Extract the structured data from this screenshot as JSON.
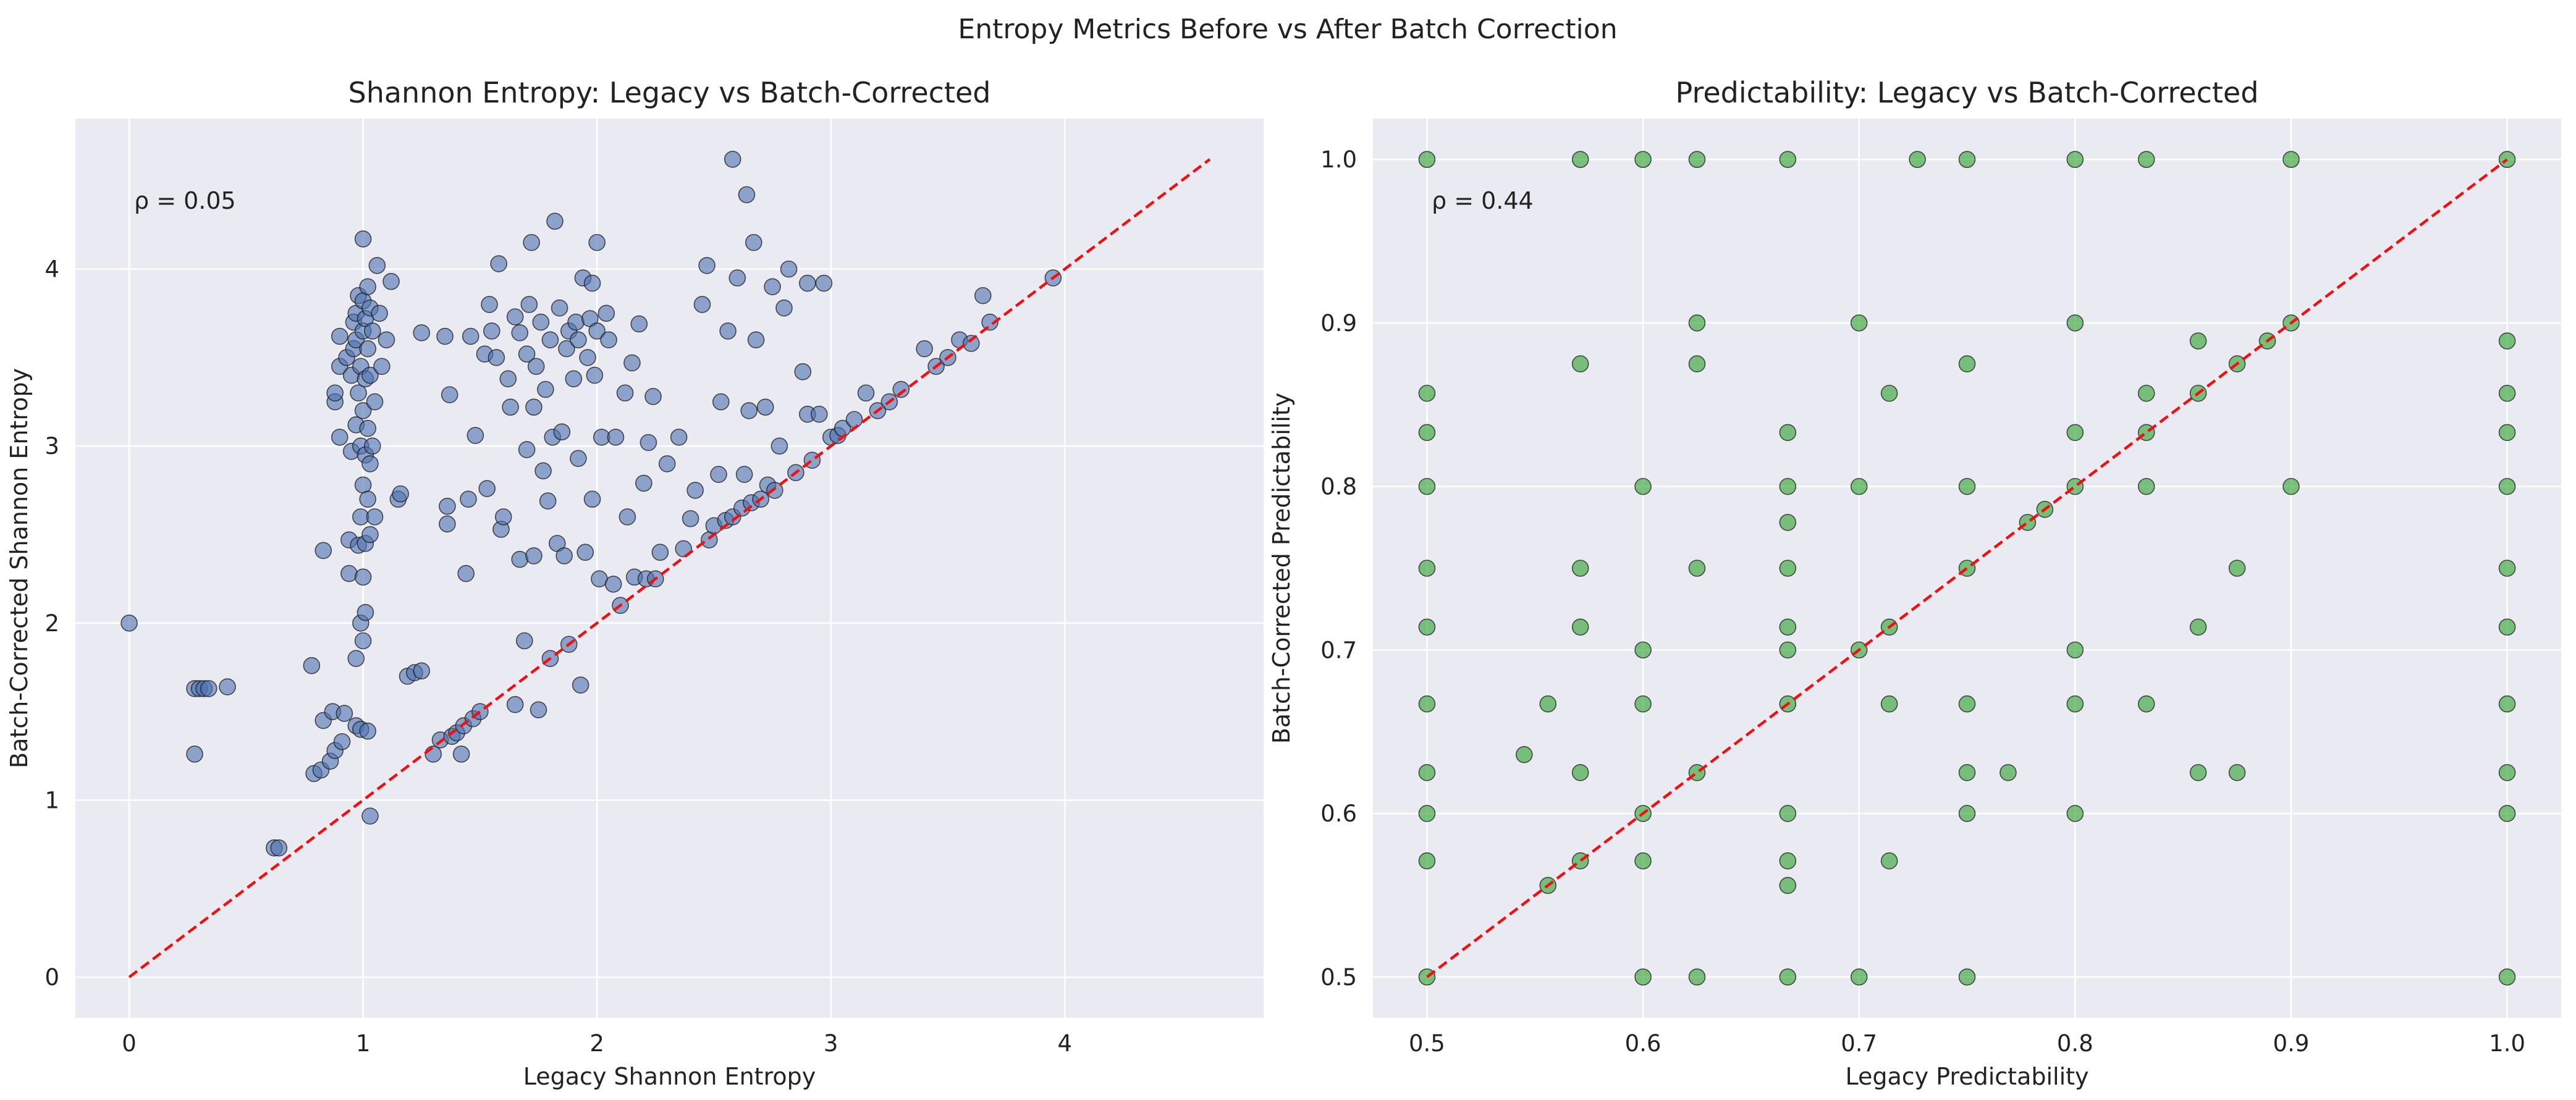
{
  "figure": {
    "suptitle": "Entropy Metrics Before vs After Batch Correction"
  },
  "colors": {
    "background": "#eaeaf2",
    "grid": "#ffffff",
    "identity_line": "#ee1111",
    "entropy_points": "#4c72b0",
    "predictability_points": "#2ca02c",
    "point_edge": "#1a1a1a"
  },
  "chart_data": [
    {
      "type": "scatter",
      "title": "Shannon Entropy: Legacy vs Batch-Corrected",
      "xlabel": "Legacy Shannon Entropy",
      "ylabel": "Batch-Corrected Shannon Entropy",
      "xlim": [
        -0.23,
        4.85
      ],
      "ylim": [
        -0.23,
        4.85
      ],
      "xticks": [
        "0",
        "1",
        "2",
        "3",
        "4"
      ],
      "yticks": [
        "0",
        "1",
        "2",
        "3",
        "4"
      ],
      "annotation": "ρ = 0.05",
      "grid": true,
      "reference_line": {
        "style": "dashed",
        "from": [
          0,
          0
        ],
        "to": [
          4.62,
          4.62
        ]
      },
      "point_color": "#4c72b0",
      "point_alpha": 0.6,
      "points": [
        [
          0.0,
          2.0
        ],
        [
          0.28,
          1.26
        ],
        [
          0.28,
          1.63
        ],
        [
          0.3,
          1.63
        ],
        [
          0.32,
          1.63
        ],
        [
          0.34,
          1.63
        ],
        [
          0.42,
          1.64
        ],
        [
          0.62,
          0.73
        ],
        [
          0.64,
          0.73
        ],
        [
          0.79,
          1.15
        ],
        [
          0.78,
          1.76
        ],
        [
          0.82,
          1.17
        ],
        [
          0.83,
          1.45
        ],
        [
          0.83,
          2.41
        ],
        [
          0.86,
          1.22
        ],
        [
          0.88,
          1.28
        ],
        [
          0.87,
          1.5
        ],
        [
          0.88,
          3.25
        ],
        [
          0.88,
          3.3
        ],
        [
          0.9,
          3.05
        ],
        [
          0.9,
          3.45
        ],
        [
          0.9,
          3.62
        ],
        [
          0.91,
          1.33
        ],
        [
          0.92,
          1.49
        ],
        [
          0.93,
          3.5
        ],
        [
          0.94,
          2.28
        ],
        [
          0.94,
          2.47
        ],
        [
          0.95,
          2.97
        ],
        [
          0.95,
          3.4
        ],
        [
          0.96,
          3.55
        ],
        [
          0.96,
          3.7
        ],
        [
          0.97,
          1.42
        ],
        [
          0.97,
          1.8
        ],
        [
          0.97,
          3.12
        ],
        [
          0.97,
          3.6
        ],
        [
          0.97,
          3.75
        ],
        [
          0.98,
          2.44
        ],
        [
          0.98,
          3.3
        ],
        [
          0.98,
          3.85
        ],
        [
          0.99,
          1.4
        ],
        [
          0.99,
          2.0
        ],
        [
          0.99,
          2.6
        ],
        [
          0.99,
          3.0
        ],
        [
          0.99,
          3.45
        ],
        [
          1.0,
          1.9
        ],
        [
          1.0,
          2.26
        ],
        [
          1.0,
          2.78
        ],
        [
          1.0,
          3.2
        ],
        [
          1.0,
          3.65
        ],
        [
          1.0,
          3.82
        ],
        [
          1.0,
          4.17
        ],
        [
          1.01,
          2.06
        ],
        [
          1.01,
          2.45
        ],
        [
          1.01,
          2.95
        ],
        [
          1.01,
          3.38
        ],
        [
          1.01,
          3.72
        ],
        [
          1.02,
          1.39
        ],
        [
          1.02,
          2.7
        ],
        [
          1.02,
          3.1
        ],
        [
          1.02,
          3.55
        ],
        [
          1.02,
          3.9
        ],
        [
          1.03,
          0.91
        ],
        [
          1.03,
          2.5
        ],
        [
          1.03,
          2.9
        ],
        [
          1.03,
          3.4
        ],
        [
          1.03,
          3.78
        ],
        [
          1.04,
          3.0
        ],
        [
          1.04,
          3.65
        ],
        [
          1.05,
          2.6
        ],
        [
          1.05,
          3.25
        ],
        [
          1.06,
          4.02
        ],
        [
          1.07,
          3.75
        ],
        [
          1.08,
          3.45
        ],
        [
          1.1,
          3.6
        ],
        [
          1.12,
          3.93
        ],
        [
          1.15,
          2.7
        ],
        [
          1.16,
          2.73
        ],
        [
          1.19,
          1.7
        ],
        [
          1.22,
          1.72
        ],
        [
          1.25,
          1.73
        ],
        [
          1.25,
          3.64
        ],
        [
          1.3,
          1.26
        ],
        [
          1.33,
          1.34
        ],
        [
          1.35,
          3.62
        ],
        [
          1.36,
          2.56
        ],
        [
          1.36,
          2.66
        ],
        [
          1.37,
          3.29
        ],
        [
          1.38,
          1.36
        ],
        [
          1.4,
          1.38
        ],
        [
          1.42,
          1.26
        ],
        [
          1.43,
          1.42
        ],
        [
          1.44,
          2.28
        ],
        [
          1.45,
          2.7
        ],
        [
          1.46,
          3.62
        ],
        [
          1.47,
          1.46
        ],
        [
          1.48,
          3.06
        ],
        [
          1.5,
          1.5
        ],
        [
          1.52,
          3.52
        ],
        [
          1.53,
          2.76
        ],
        [
          1.54,
          3.8
        ],
        [
          1.55,
          3.65
        ],
        [
          1.57,
          3.5
        ],
        [
          1.58,
          4.03
        ],
        [
          1.59,
          2.53
        ],
        [
          1.6,
          2.6
        ],
        [
          1.62,
          3.38
        ],
        [
          1.63,
          3.22
        ],
        [
          1.65,
          1.54
        ],
        [
          1.65,
          3.73
        ],
        [
          1.67,
          2.36
        ],
        [
          1.67,
          3.64
        ],
        [
          1.69,
          1.9
        ],
        [
          1.7,
          2.98
        ],
        [
          1.7,
          3.52
        ],
        [
          1.71,
          3.8
        ],
        [
          1.72,
          4.15
        ],
        [
          1.73,
          2.38
        ],
        [
          1.73,
          3.22
        ],
        [
          1.74,
          3.45
        ],
        [
          1.75,
          1.51
        ],
        [
          1.76,
          3.7
        ],
        [
          1.77,
          2.86
        ],
        [
          1.78,
          3.32
        ],
        [
          1.79,
          2.69
        ],
        [
          1.8,
          1.8
        ],
        [
          1.8,
          3.6
        ],
        [
          1.81,
          3.05
        ],
        [
          1.82,
          4.27
        ],
        [
          1.83,
          2.45
        ],
        [
          1.84,
          3.78
        ],
        [
          1.85,
          3.08
        ],
        [
          1.86,
          2.38
        ],
        [
          1.87,
          3.55
        ],
        [
          1.88,
          1.88
        ],
        [
          1.88,
          3.65
        ],
        [
          1.9,
          3.38
        ],
        [
          1.91,
          3.7
        ],
        [
          1.92,
          3.6
        ],
        [
          1.92,
          2.93
        ],
        [
          1.93,
          1.65
        ],
        [
          1.94,
          3.95
        ],
        [
          1.95,
          2.4
        ],
        [
          1.96,
          3.5
        ],
        [
          1.97,
          3.72
        ],
        [
          1.98,
          2.7
        ],
        [
          1.98,
          3.92
        ],
        [
          1.99,
          3.4
        ],
        [
          2.0,
          3.65
        ],
        [
          2.0,
          4.15
        ],
        [
          2.01,
          2.25
        ],
        [
          2.02,
          3.05
        ],
        [
          2.04,
          3.75
        ],
        [
          2.05,
          3.6
        ],
        [
          2.07,
          2.22
        ],
        [
          2.08,
          3.05
        ],
        [
          2.1,
          2.1
        ],
        [
          2.12,
          3.3
        ],
        [
          2.13,
          2.6
        ],
        [
          2.15,
          3.47
        ],
        [
          2.16,
          2.26
        ],
        [
          2.18,
          3.69
        ],
        [
          2.2,
          2.79
        ],
        [
          2.21,
          2.25
        ],
        [
          2.22,
          3.02
        ],
        [
          2.24,
          3.28
        ],
        [
          2.25,
          2.25
        ],
        [
          2.27,
          2.4
        ],
        [
          2.3,
          2.9
        ],
        [
          2.35,
          3.05
        ],
        [
          2.37,
          2.42
        ],
        [
          2.4,
          2.59
        ],
        [
          2.42,
          2.75
        ],
        [
          2.45,
          3.8
        ],
        [
          2.47,
          4.02
        ],
        [
          2.48,
          2.47
        ],
        [
          2.5,
          2.55
        ],
        [
          2.52,
          2.84
        ],
        [
          2.53,
          3.25
        ],
        [
          2.55,
          2.58
        ],
        [
          2.56,
          3.65
        ],
        [
          2.58,
          2.6
        ],
        [
          2.58,
          4.62
        ],
        [
          2.6,
          3.95
        ],
        [
          2.62,
          2.65
        ],
        [
          2.63,
          2.84
        ],
        [
          2.64,
          4.42
        ],
        [
          2.65,
          3.2
        ],
        [
          2.66,
          2.68
        ],
        [
          2.67,
          4.15
        ],
        [
          2.68,
          3.6
        ],
        [
          2.7,
          2.7
        ],
        [
          2.72,
          3.22
        ],
        [
          2.73,
          2.78
        ],
        [
          2.75,
          3.9
        ],
        [
          2.76,
          2.75
        ],
        [
          2.78,
          3.0
        ],
        [
          2.8,
          3.78
        ],
        [
          2.82,
          4.0
        ],
        [
          2.85,
          2.85
        ],
        [
          2.88,
          3.42
        ],
        [
          2.9,
          3.18
        ],
        [
          2.9,
          3.92
        ],
        [
          2.92,
          2.92
        ],
        [
          2.95,
          3.18
        ],
        [
          2.97,
          3.92
        ],
        [
          3.0,
          3.05
        ],
        [
          3.03,
          3.06
        ],
        [
          3.05,
          3.1
        ],
        [
          3.1,
          3.15
        ],
        [
          3.15,
          3.3
        ],
        [
          3.2,
          3.2
        ],
        [
          3.25,
          3.25
        ],
        [
          3.3,
          3.32
        ],
        [
          3.4,
          3.55
        ],
        [
          3.45,
          3.45
        ],
        [
          3.5,
          3.5
        ],
        [
          3.55,
          3.6
        ],
        [
          3.6,
          3.58
        ],
        [
          3.65,
          3.85
        ],
        [
          3.68,
          3.7
        ],
        [
          3.95,
          3.95
        ]
      ]
    },
    {
      "type": "scatter",
      "title": "Predictability: Legacy vs Batch-Corrected",
      "xlabel": "Legacy Predictability",
      "ylabel": "Batch-Corrected Predictability",
      "xlim": [
        0.475,
        1.025
      ],
      "ylim": [
        0.475,
        1.025
      ],
      "xticks": [
        "0.5",
        "0.6",
        "0.7",
        "0.8",
        "0.9",
        "1.0"
      ],
      "yticks": [
        "0.5",
        "0.6",
        "0.7",
        "0.8",
        "0.9",
        "1.0"
      ],
      "annotation": "ρ = 0.44",
      "grid": true,
      "reference_line": {
        "style": "dashed",
        "from": [
          0.5,
          0.5
        ],
        "to": [
          1.0,
          1.0
        ]
      },
      "point_color": "#2ca02c",
      "point_alpha": 0.6,
      "points": [
        [
          0.5,
          0.5
        ],
        [
          0.5,
          0.571
        ],
        [
          0.5,
          0.6
        ],
        [
          0.5,
          0.625
        ],
        [
          0.5,
          0.667
        ],
        [
          0.5,
          0.714
        ],
        [
          0.5,
          0.75
        ],
        [
          0.5,
          0.8
        ],
        [
          0.5,
          0.833
        ],
        [
          0.5,
          0.857
        ],
        [
          0.5,
          1.0
        ],
        [
          0.545,
          0.636
        ],
        [
          0.556,
          0.556
        ],
        [
          0.556,
          0.667
        ],
        [
          0.571,
          0.571
        ],
        [
          0.571,
          0.625
        ],
        [
          0.571,
          0.714
        ],
        [
          0.571,
          0.75
        ],
        [
          0.571,
          0.875
        ],
        [
          0.571,
          1.0
        ],
        [
          0.6,
          0.5
        ],
        [
          0.6,
          0.571
        ],
        [
          0.6,
          0.6
        ],
        [
          0.6,
          0.667
        ],
        [
          0.6,
          0.7
        ],
        [
          0.6,
          0.8
        ],
        [
          0.6,
          1.0
        ],
        [
          0.625,
          0.5
        ],
        [
          0.625,
          0.625
        ],
        [
          0.625,
          0.75
        ],
        [
          0.625,
          0.875
        ],
        [
          0.625,
          0.9
        ],
        [
          0.625,
          1.0
        ],
        [
          0.667,
          0.5
        ],
        [
          0.667,
          0.556
        ],
        [
          0.667,
          0.571
        ],
        [
          0.667,
          0.6
        ],
        [
          0.667,
          0.667
        ],
        [
          0.667,
          0.7
        ],
        [
          0.667,
          0.714
        ],
        [
          0.667,
          0.75
        ],
        [
          0.667,
          0.778
        ],
        [
          0.667,
          0.8
        ],
        [
          0.667,
          0.833
        ],
        [
          0.667,
          1.0
        ],
        [
          0.7,
          0.5
        ],
        [
          0.7,
          0.7
        ],
        [
          0.7,
          0.8
        ],
        [
          0.7,
          0.9
        ],
        [
          0.714,
          0.571
        ],
        [
          0.714,
          0.667
        ],
        [
          0.714,
          0.714
        ],
        [
          0.714,
          0.857
        ],
        [
          0.727,
          1.0
        ],
        [
          0.75,
          0.5
        ],
        [
          0.75,
          0.6
        ],
        [
          0.75,
          0.625
        ],
        [
          0.75,
          0.667
        ],
        [
          0.75,
          0.75
        ],
        [
          0.75,
          0.8
        ],
        [
          0.75,
          0.875
        ],
        [
          0.75,
          1.0
        ],
        [
          0.769,
          0.625
        ],
        [
          0.778,
          0.778
        ],
        [
          0.786,
          0.786
        ],
        [
          0.8,
          0.6
        ],
        [
          0.8,
          0.667
        ],
        [
          0.8,
          0.7
        ],
        [
          0.8,
          0.8
        ],
        [
          0.8,
          0.833
        ],
        [
          0.8,
          0.9
        ],
        [
          0.8,
          1.0
        ],
        [
          0.833,
          0.667
        ],
        [
          0.833,
          0.8
        ],
        [
          0.833,
          0.833
        ],
        [
          0.833,
          0.857
        ],
        [
          0.833,
          1.0
        ],
        [
          0.857,
          0.625
        ],
        [
          0.857,
          0.714
        ],
        [
          0.857,
          0.857
        ],
        [
          0.857,
          0.889
        ],
        [
          0.875,
          0.625
        ],
        [
          0.875,
          0.75
        ],
        [
          0.875,
          0.875
        ],
        [
          0.889,
          0.889
        ],
        [
          0.9,
          0.8
        ],
        [
          0.9,
          0.9
        ],
        [
          0.9,
          1.0
        ],
        [
          1.0,
          0.5
        ],
        [
          1.0,
          0.6
        ],
        [
          1.0,
          0.625
        ],
        [
          1.0,
          0.667
        ],
        [
          1.0,
          0.714
        ],
        [
          1.0,
          0.75
        ],
        [
          1.0,
          0.8
        ],
        [
          1.0,
          0.833
        ],
        [
          1.0,
          0.857
        ],
        [
          1.0,
          0.889
        ],
        [
          1.0,
          1.0
        ]
      ]
    }
  ]
}
